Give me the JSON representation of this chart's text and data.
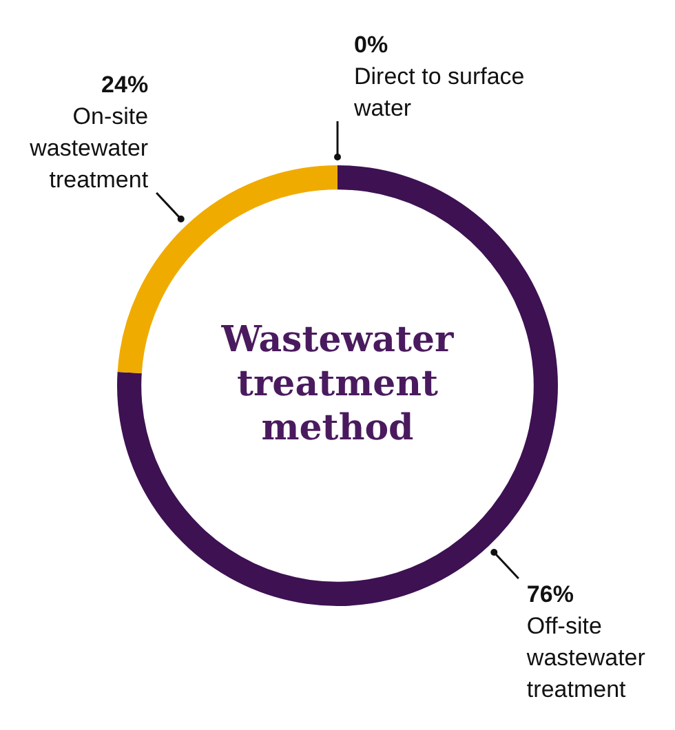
{
  "chart_data": {
    "type": "donut",
    "title": "Wastewater treatment method",
    "categories": [
      "Direct to surface water",
      "Off-site wastewater treatment",
      "On-site wastewater treatment"
    ],
    "values": [
      0,
      76,
      24
    ],
    "colors": [
      "#3d1152",
      "#3d1152",
      "#f0ab00"
    ],
    "value_labels": [
      "0%",
      "76%",
      "24%"
    ]
  }
}
